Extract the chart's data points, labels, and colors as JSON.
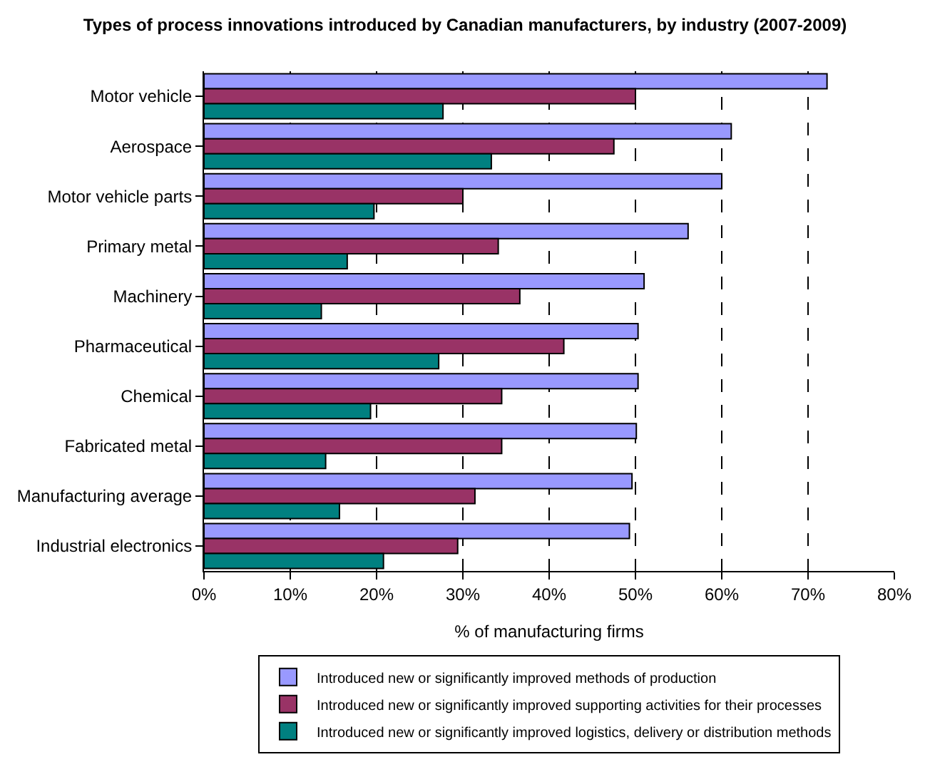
{
  "chart_data": {
    "type": "bar",
    "orientation": "horizontal",
    "title": "Types of process innovations introduced by Canadian manufacturers, by industry (2007-2009)",
    "categories": [
      "Motor vehicle",
      "Aerospace",
      "Motor vehicle parts",
      "Primary metal",
      "Machinery",
      "Pharmaceutical",
      "Chemical",
      "Fabricated metal",
      "Manufacturing average",
      "Industrial electronics"
    ],
    "series": [
      {
        "name": "Introduced new or significantly improved methods of production",
        "color": "#9999ff",
        "values": [
          72.2,
          61.1,
          60.0,
          56.1,
          51.0,
          50.3,
          50.3,
          50.1,
          49.6,
          49.3
        ]
      },
      {
        "name": "Introduced new or significantly improved supporting activities for their processes",
        "color": "#993366",
        "values": [
          50.0,
          47.5,
          30.0,
          34.1,
          36.6,
          41.7,
          34.5,
          34.5,
          31.4,
          29.4
        ]
      },
      {
        "name": "Introduced new or significantly improved logistics, delivery or distribution methods",
        "color": "#008080",
        "values": [
          27.7,
          33.3,
          19.7,
          16.6,
          13.6,
          27.2,
          19.3,
          14.1,
          15.7,
          20.8
        ]
      }
    ],
    "xlabel": "% of manufacturing firms",
    "xlim": [
      0,
      80
    ],
    "xticks": [
      {
        "value": 0,
        "label": "0%"
      },
      {
        "value": 10,
        "label": "10%"
      },
      {
        "value": 20,
        "label": "20%"
      },
      {
        "value": 30,
        "label": "30%"
      },
      {
        "value": 40,
        "label": "40%"
      },
      {
        "value": 50,
        "label": "50%"
      },
      {
        "value": 60,
        "label": "60%"
      },
      {
        "value": 70,
        "label": "70%"
      },
      {
        "value": 80,
        "label": "80%"
      }
    ],
    "grid": "x",
    "legend": "bottom"
  }
}
